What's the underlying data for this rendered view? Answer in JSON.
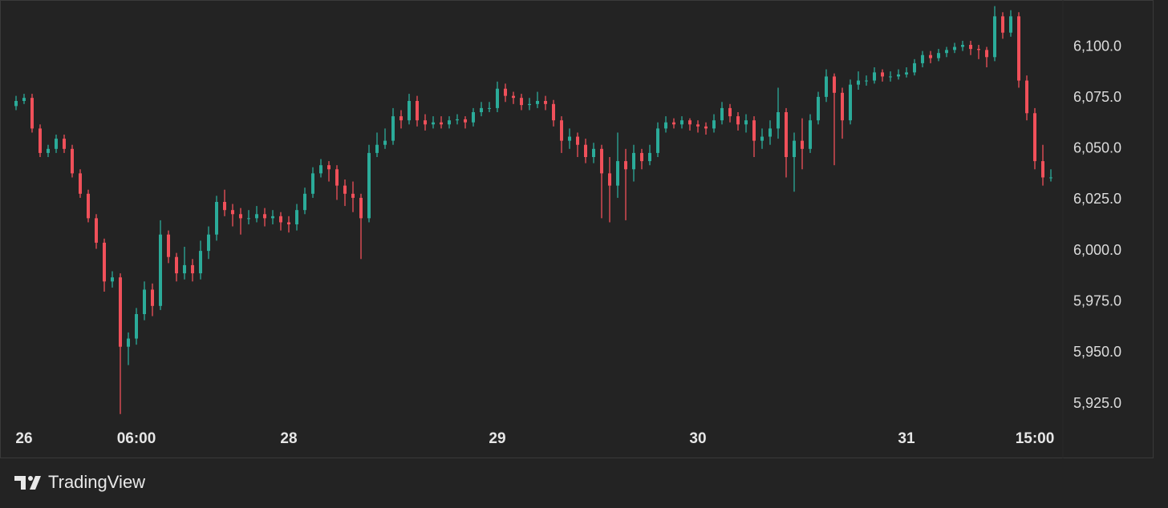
{
  "chart_data": {
    "type": "candlestick",
    "categories": [
      null,
      "26",
      null,
      null,
      null,
      null,
      null,
      null,
      null,
      null,
      null,
      null,
      null,
      null,
      null,
      "06:00",
      null,
      null,
      null,
      null,
      null,
      null,
      null,
      null,
      null,
      null,
      null,
      null,
      null,
      null,
      null,
      null,
      null,
      null,
      "28",
      null,
      null,
      null,
      null,
      null,
      null,
      null,
      null,
      null,
      null,
      null,
      null,
      null,
      null,
      null,
      null,
      null,
      null,
      null,
      null,
      null,
      null,
      null,
      null,
      null,
      "29",
      null,
      null,
      null,
      null,
      null,
      null,
      null,
      null,
      null,
      null,
      null,
      null,
      null,
      null,
      null,
      null,
      null,
      null,
      null,
      null,
      null,
      null,
      null,
      null,
      "30",
      null,
      null,
      null,
      null,
      null,
      null,
      null,
      null,
      null,
      null,
      null,
      null,
      null,
      null,
      null,
      null,
      null,
      null,
      null,
      null,
      null,
      null,
      null,
      null,
      null,
      "31",
      null,
      null,
      null,
      null,
      null,
      null,
      null,
      null,
      null,
      null,
      null,
      null,
      null,
      null,
      null,
      "15:00",
      null,
      null
    ],
    "open": [
      6071,
      6073.5,
      6075,
      6060,
      6048,
      6050,
      6055,
      6050,
      6038,
      6028,
      6016,
      6004,
      5985,
      5987,
      5953,
      5957,
      5969,
      5981,
      5973,
      6008,
      5997,
      5989,
      5993,
      5989,
      6000,
      6008,
      6024,
      6020,
      6018,
      6016,
      6016,
      6018,
      6016,
      6017,
      6014,
      6013,
      6020,
      6028,
      6038,
      6042,
      6040,
      6032,
      6028,
      6026,
      6016,
      6048,
      6052,
      6054,
      6066,
      6064,
      6073.5,
      6064,
      6062,
      6063,
      6062,
      6064,
      6064.5,
      6063,
      6068,
      6070,
      6070,
      6079.5,
      6076,
      6075,
      6071.5,
      6072,
      6073.5,
      6072,
      6064,
      6054,
      6056,
      6052,
      6046,
      6050,
      6038,
      6032,
      6044,
      6040,
      6048,
      6044,
      6048,
      6060,
      6063,
      6062,
      6064,
      6062,
      6061,
      6060,
      6064,
      6070,
      6066,
      6062,
      6064,
      6054,
      6056,
      6060,
      6068,
      6046,
      6054,
      6050,
      6064,
      6075.5,
      6085.5,
      6077.5,
      6064,
      6081.5,
      6083.5,
      6083.5,
      6087.5,
      6085.5,
      6085.5,
      6086.5,
      6087.5,
      6092,
      6096,
      6094.5,
      6097,
      6098.5,
      6100,
      6101,
      6099,
      6098.5,
      6095,
      6115,
      6107,
      6115,
      6083.5,
      6067.5,
      6044,
      6036
    ],
    "high": [
      6076,
      6077,
      6077,
      6062,
      6052,
      6057,
      6057,
      6052,
      6040,
      6030,
      6018,
      6006,
      5990,
      5989,
      5960,
      5972,
      5985,
      5984,
      6015,
      6010,
      5999,
      6002,
      5996,
      6005,
      6012,
      6027,
      6030,
      6023,
      6021,
      6020,
      6022,
      6021,
      6020,
      6019,
      6017,
      6023,
      6031,
      6041,
      6045,
      6044,
      6042,
      6035,
      6034,
      6028,
      6052,
      6058,
      6060,
      6070,
      6069,
      6077,
      6076,
      6067,
      6066,
      6066,
      6066,
      6067,
      6066,
      6070,
      6073,
      6073,
      6083,
      6082,
      6078,
      6077,
      6075,
      6078,
      6076,
      6074,
      6066,
      6060,
      6058,
      6055,
      6053,
      6052,
      6046,
      6058,
      6050,
      6052,
      6050,
      6052,
      6063,
      6066,
      6065,
      6066,
      6065,
      6064,
      6063,
      6067,
      6073,
      6072,
      6068,
      6067,
      6066,
      6060,
      6064,
      6080,
      6070,
      6058,
      6065,
      6067,
      6078,
      6089,
      6087,
      6080,
      6084,
      6088,
      6086,
      6090,
      6089,
      6088,
      6089,
      6090,
      6094,
      6098,
      6098,
      6099,
      6100,
      6102,
      6103,
      6103,
      6101,
      6100,
      6120,
      6117,
      6118,
      6117,
      6086,
      6070,
      6052,
      6040
    ],
    "low": [
      6069,
      6072,
      6058,
      6046,
      6046,
      6048,
      6048,
      6036,
      6026,
      6014,
      6001,
      5980,
      5982,
      5920,
      5944,
      5954,
      5966,
      5968,
      5971,
      5994,
      5985,
      5986,
      5985,
      5986,
      5996,
      6005,
      6017,
      6012,
      6008,
      6013,
      6014,
      6012,
      6013,
      6010,
      6009,
      6010,
      6018,
      6026,
      6036,
      6034,
      6025,
      6022,
      6019,
      5996,
      6014,
      6046,
      6050,
      6052,
      6060,
      6062,
      6061,
      6059,
      6060,
      6060,
      6060,
      6062,
      6060,
      6061,
      6066,
      6068,
      6068,
      6073,
      6072,
      6069,
      6069,
      6070,
      6069,
      6061,
      6048,
      6050,
      6046,
      6043,
      6043,
      6016,
      6014,
      6026,
      6015,
      6034,
      6040,
      6042,
      6046,
      6058,
      6060,
      6060,
      6059,
      6058,
      6057,
      6058,
      6062,
      6063,
      6059,
      6058,
      6046,
      6050,
      6052,
      6055,
      6036,
      6029,
      6040,
      6048,
      6062,
      6073,
      6042,
      6055,
      6062,
      6079,
      6081,
      6082,
      6083,
      6083,
      6084,
      6085,
      6086,
      6090,
      6092,
      6093,
      6095,
      6097,
      6098,
      6096,
      6094,
      6090,
      6093,
      6104,
      6105,
      6080,
      6064,
      6040,
      6032,
      6034
    ],
    "close": [
      6073.5,
      6075,
      6060,
      6048,
      6050,
      6055,
      6050,
      6038,
      6028,
      6016,
      6004,
      5985,
      5987,
      5953,
      5957,
      5969,
      5981,
      5973,
      6008,
      5997,
      5989,
      5993,
      5989,
      6000,
      6008,
      6024,
      6020,
      6018,
      6016,
      6016,
      6018,
      6016,
      6017,
      6014,
      6013,
      6020,
      6028,
      6038,
      6042,
      6040,
      6032,
      6028,
      6026,
      6016,
      6048,
      6052,
      6054,
      6066,
      6064,
      6073.5,
      6064,
      6062,
      6063,
      6062,
      6064,
      6064.5,
      6063,
      6068,
      6070,
      6070,
      6079.5,
      6076,
      6075,
      6071.5,
      6072,
      6073.5,
      6072,
      6064,
      6054,
      6056,
      6052,
      6046,
      6050,
      6038,
      6032,
      6044,
      6040,
      6048,
      6044,
      6048,
      6060,
      6063,
      6062,
      6064,
      6062,
      6061,
      6060,
      6064,
      6070,
      6066,
      6062,
      6064,
      6054,
      6056,
      6060,
      6068,
      6046,
      6054,
      6050,
      6064,
      6075.5,
      6085.5,
      6077.5,
      6064,
      6081.5,
      6083.5,
      6083.5,
      6087.5,
      6085.5,
      6085.5,
      6086.5,
      6087.5,
      6092,
      6096,
      6094.5,
      6097,
      6098.5,
      6100,
      6101,
      6099,
      6098.5,
      6095,
      6115,
      6107,
      6115,
      6083.5,
      6067.5,
      6044,
      6036,
      6036
    ],
    "up_color": "#2bab99",
    "down_color": "#f0505a",
    "ylim": [
      5914,
      6123
    ],
    "yticks": [
      {
        "value": 5925,
        "label": "5,925.0"
      },
      {
        "value": 5950,
        "label": "5,950.0"
      },
      {
        "value": 5975,
        "label": "5,975.0"
      },
      {
        "value": 6000,
        "label": "6,000.0"
      },
      {
        "value": 6025,
        "label": "6,025.0"
      },
      {
        "value": 6050,
        "label": "6,050.0"
      },
      {
        "value": 6075,
        "label": "6,075.0"
      },
      {
        "value": 6100,
        "label": "6,100.0"
      }
    ],
    "watermark": "TradingView"
  }
}
